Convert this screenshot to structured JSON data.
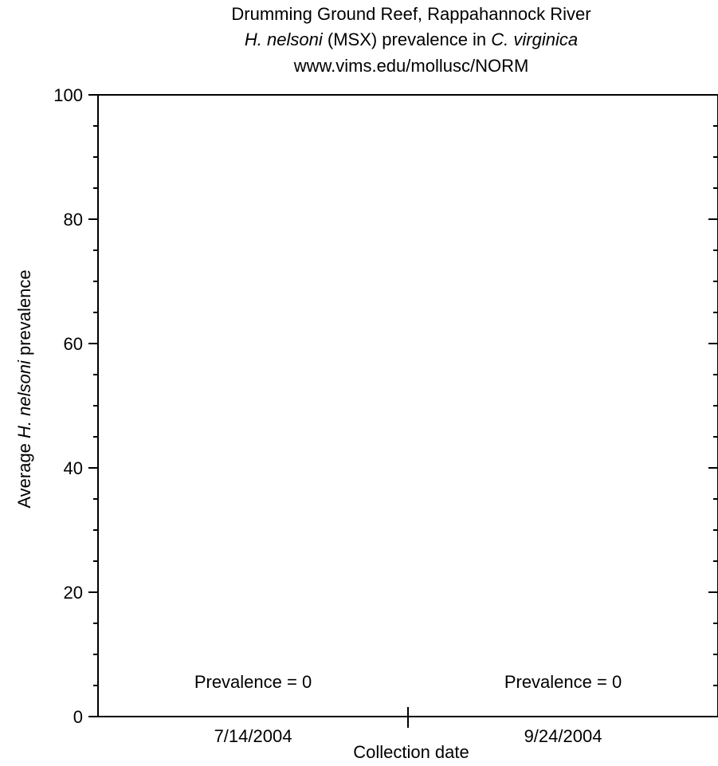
{
  "chart_data": {
    "type": "bar",
    "title": {
      "line1": "Drumming Ground Reef, Rappahannock River",
      "line2_italic_a": "H. nelsoni",
      "line2_plain": " (MSX) prevalence in ",
      "line2_italic_b": "C. virginica",
      "line3": "www.vims.edu/mollusc/NORM"
    },
    "ylabel": {
      "prefix": "Average ",
      "italic": "H. nelsoni",
      "suffix": " prevalence"
    },
    "xlabel": "Collection date",
    "categories": [
      "7/14/2004",
      "9/24/2004"
    ],
    "values": [
      0,
      0
    ],
    "annotations": [
      "Prevalence = 0",
      "Prevalence = 0"
    ],
    "ylim": [
      0,
      100
    ],
    "yticks": [
      0,
      20,
      40,
      60,
      80,
      100
    ],
    "y_minor_step": 5,
    "grid": false,
    "legend": "none",
    "colors": {
      "axis": "#000000",
      "background": "#ffffff"
    }
  }
}
